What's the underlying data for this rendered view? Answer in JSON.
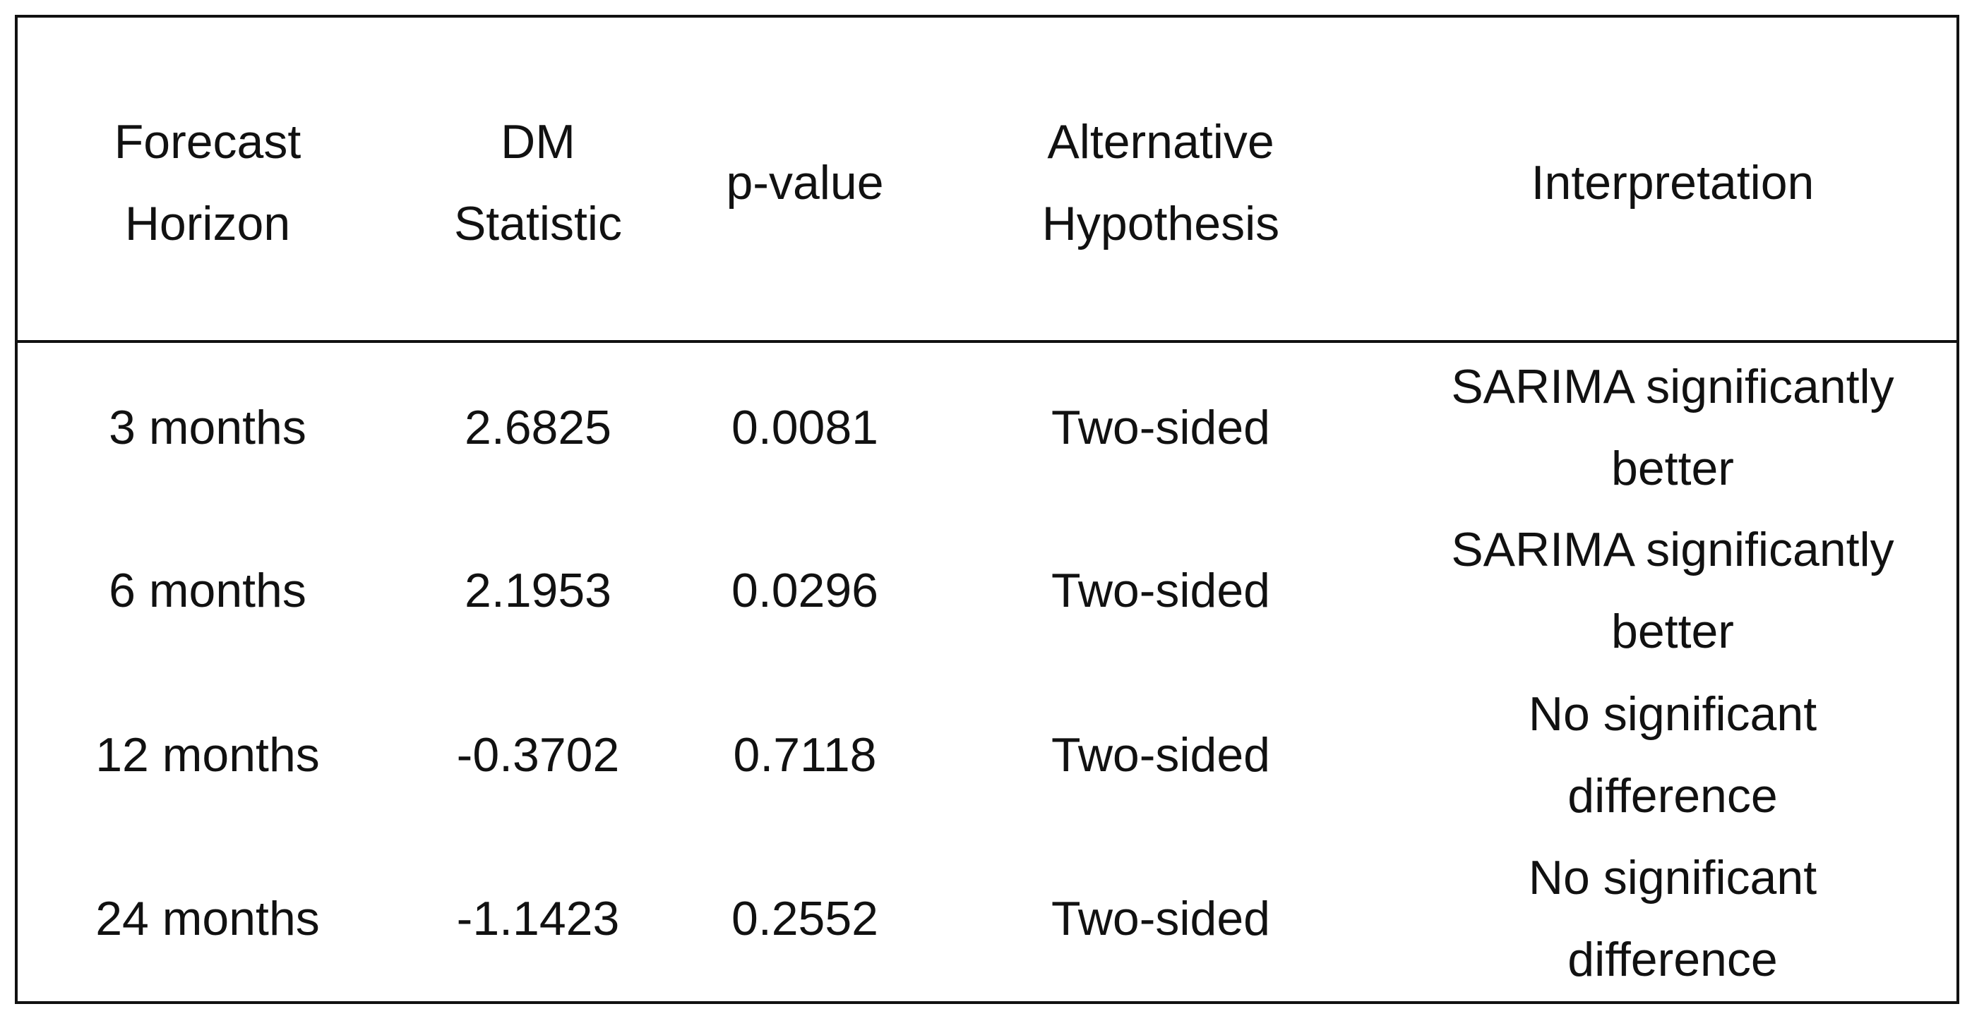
{
  "table": {
    "header": [
      "Forecast Horizon",
      "DM Statistic",
      "p-value",
      "Alternative Hypothesis",
      "Interpretation"
    ],
    "rows": [
      [
        "3 months",
        "2.6825",
        "0.0081",
        "Two-sided",
        "SARIMA significantly better"
      ],
      [
        "6 months",
        "2.1953",
        "0.0296",
        "Two-sided",
        "SARIMA significantly better"
      ],
      [
        "12 months",
        "-0.3702",
        "0.7118",
        "Two-sided",
        "No significant difference"
      ],
      [
        "24 months",
        "-1.1423",
        "0.2552",
        "Two-sided",
        "No significant difference"
      ]
    ]
  }
}
